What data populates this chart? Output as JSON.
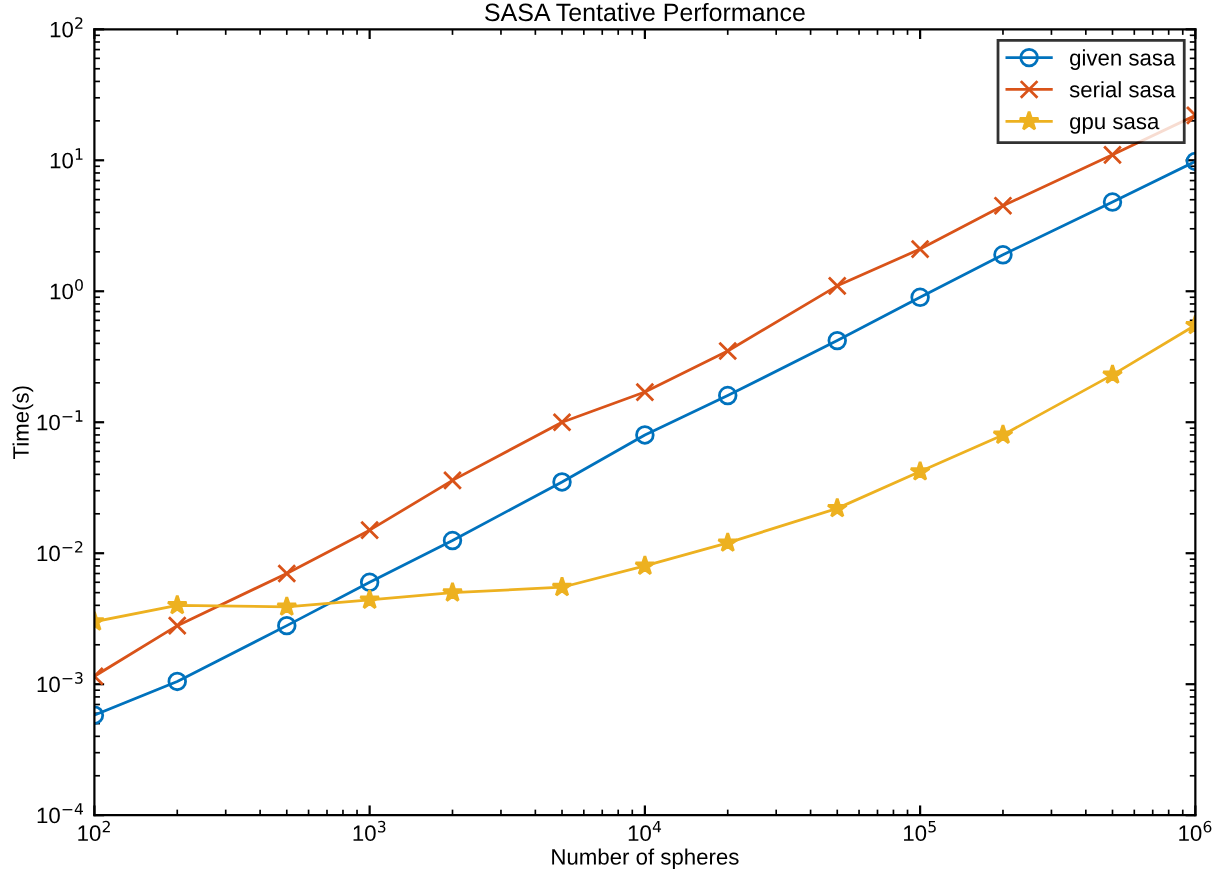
{
  "chart_data": {
    "type": "line",
    "title": "SASA Tentative Performance",
    "xlabel": "Number of spheres",
    "ylabel": "Time(s)",
    "log": "xy",
    "legend": "top right",
    "grid": false,
    "x": [
      100,
      200,
      500,
      1000,
      2000,
      5000,
      10000,
      20000,
      50000,
      100000,
      200000,
      500000,
      1000000
    ],
    "xlim": [
      100,
      1000000
    ],
    "ylim": [
      0.0001,
      100
    ],
    "xticks": [
      {
        "value": 100,
        "label": "10$^{2}$"
      },
      {
        "value": 1000,
        "label": "10$^{3}$"
      },
      {
        "value": 10000,
        "label": "10$^{4}$"
      },
      {
        "value": 100000,
        "label": "10$^{5}$"
      },
      {
        "value": 1000000,
        "label": "10$^{6}$"
      }
    ],
    "yticks": [
      {
        "value": 0.0001,
        "label": "10$^{−4}$"
      },
      {
        "value": 0.001,
        "label": "10$^{−3}$"
      },
      {
        "value": 0.01,
        "label": "10$^{−2}$"
      },
      {
        "value": 0.1,
        "label": "10$^{−1}$"
      },
      {
        "value": 1,
        "label": "10$^{0}$"
      },
      {
        "value": 10,
        "label": "10$^{1}$"
      },
      {
        "value": 100,
        "label": "10$^{2}$"
      }
    ],
    "series": [
      {
        "name": "given sasa",
        "color": "#0072bd",
        "marker": "circle",
        "values": [
          0.00058,
          0.00105,
          0.0028,
          0.006,
          0.0125,
          0.035,
          0.08,
          0.16,
          0.42,
          0.9,
          1.9,
          4.8,
          9.8
        ]
      },
      {
        "name": "serial sasa",
        "color": "#d95319",
        "marker": "cross",
        "values": [
          0.00115,
          0.0028,
          0.007,
          0.015,
          0.036,
          0.1,
          0.17,
          0.35,
          1.1,
          2.1,
          4.5,
          11,
          22
        ]
      },
      {
        "name": "gpu sasa",
        "color": "#edb120",
        "marker": "star",
        "values": [
          0.003,
          0.004,
          0.0039,
          0.0044,
          0.005,
          0.0055,
          0.008,
          0.012,
          0.022,
          0.042,
          0.08,
          0.23,
          0.55
        ]
      }
    ]
  }
}
